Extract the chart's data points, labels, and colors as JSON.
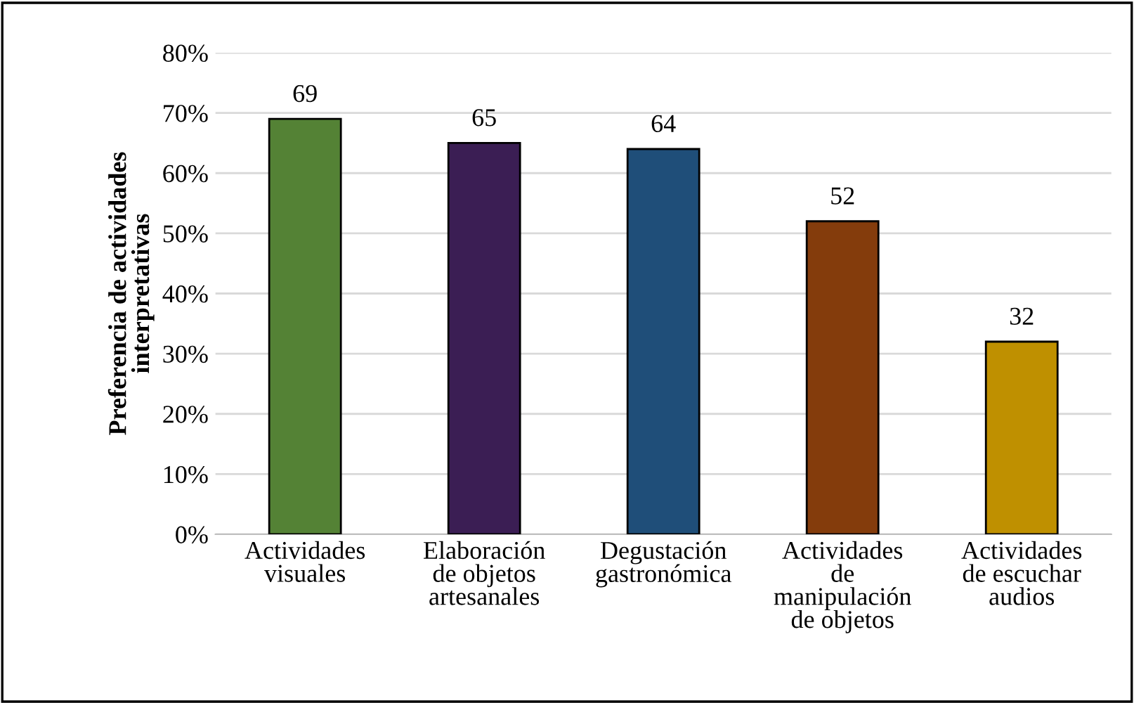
{
  "chart_data": {
    "type": "bar",
    "ylabel": "Preferencia de actividades\ninterpretativas",
    "categories": [
      "Actividades\nvisuales",
      "Elaboración\nde objetos\nartesanales",
      "Degustación\ngastronómica",
      "Actividades\nde\nmanipulación\nde objetos",
      "Actividades\nde escuchar\naudios"
    ],
    "values": [
      69,
      65,
      64,
      52,
      32
    ],
    "colors": [
      "#548235",
      "#3b1e54",
      "#1f4e79",
      "#843c0c",
      "#bf9000"
    ],
    "data_labels": true,
    "ylim": [
      0,
      80
    ],
    "yticks": [
      {
        "value": 0,
        "label": "0%"
      },
      {
        "value": 10,
        "label": "10%"
      },
      {
        "value": 20,
        "label": "20%"
      },
      {
        "value": 30,
        "label": "30%"
      },
      {
        "value": 40,
        "label": "40%"
      },
      {
        "value": 50,
        "label": "50%"
      },
      {
        "value": 60,
        "label": "60%"
      },
      {
        "value": 70,
        "label": "70%"
      },
      {
        "value": 80,
        "label": "80%"
      }
    ],
    "grid": "y"
  }
}
